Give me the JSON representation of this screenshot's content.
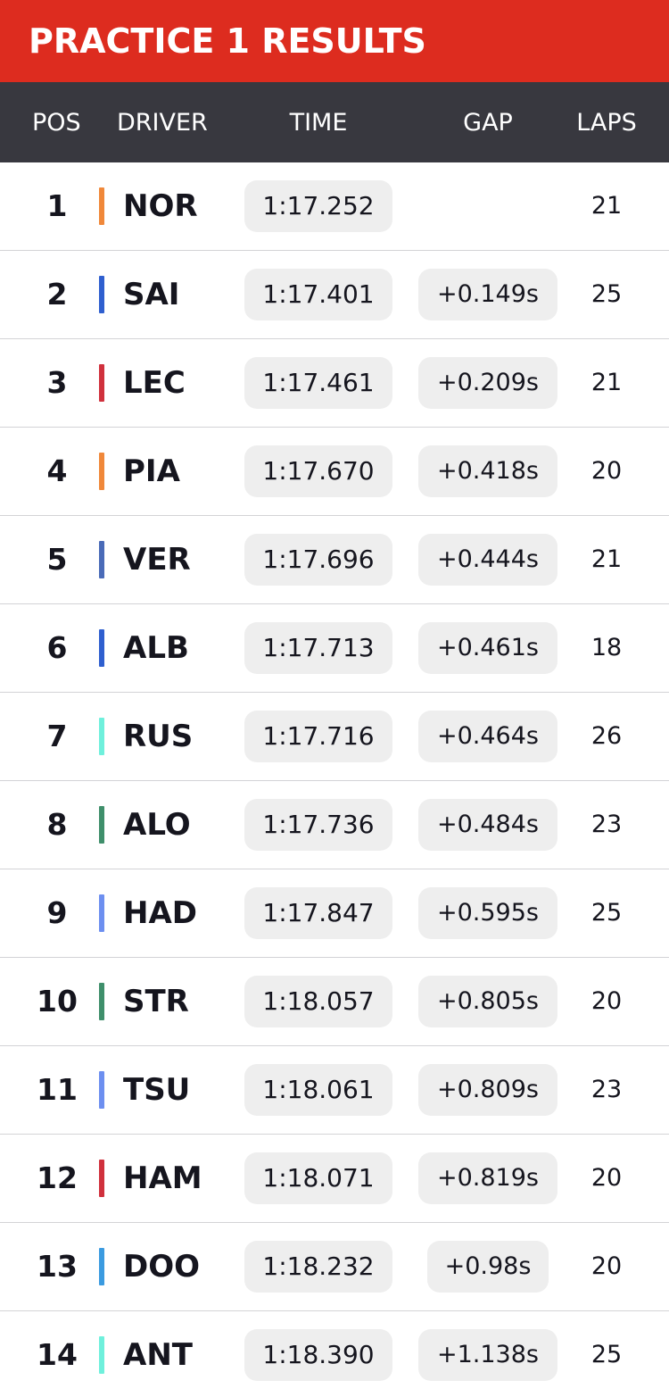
{
  "title": "PRACTICE 1 RESULTS",
  "colors": {
    "title_bar": "#dd2c1f",
    "header_bar": "#38383f",
    "pill_bg": "#eeeeee"
  },
  "header": {
    "pos": "POS",
    "driver": "DRIVER",
    "time": "TIME",
    "gap": "GAP",
    "laps": "LAPS"
  },
  "results": [
    {
      "pos": "1",
      "driver": "NOR",
      "team_color": "#f0883a",
      "time": "1:17.252",
      "gap": "",
      "laps": "21"
    },
    {
      "pos": "2",
      "driver": "SAI",
      "team_color": "#2f5fcf",
      "time": "1:17.401",
      "gap": "+0.149s",
      "laps": "25"
    },
    {
      "pos": "3",
      "driver": "LEC",
      "team_color": "#d0313d",
      "time": "1:17.461",
      "gap": "+0.209s",
      "laps": "21"
    },
    {
      "pos": "4",
      "driver": "PIA",
      "team_color": "#f0883a",
      "time": "1:17.670",
      "gap": "+0.418s",
      "laps": "20"
    },
    {
      "pos": "5",
      "driver": "VER",
      "team_color": "#4a6bb8",
      "time": "1:17.696",
      "gap": "+0.444s",
      "laps": "21"
    },
    {
      "pos": "6",
      "driver": "ALB",
      "team_color": "#2f5fcf",
      "time": "1:17.713",
      "gap": "+0.461s",
      "laps": "18"
    },
    {
      "pos": "7",
      "driver": "RUS",
      "team_color": "#6ff0dc",
      "time": "1:17.716",
      "gap": "+0.464s",
      "laps": "26"
    },
    {
      "pos": "8",
      "driver": "ALO",
      "team_color": "#3f8f6b",
      "time": "1:17.736",
      "gap": "+0.484s",
      "laps": "23"
    },
    {
      "pos": "9",
      "driver": "HAD",
      "team_color": "#6d8ff0",
      "time": "1:17.847",
      "gap": "+0.595s",
      "laps": "25"
    },
    {
      "pos": "10",
      "driver": "STR",
      "team_color": "#3f8f6b",
      "time": "1:18.057",
      "gap": "+0.805s",
      "laps": "20"
    },
    {
      "pos": "11",
      "driver": "TSU",
      "team_color": "#6d8ff0",
      "time": "1:18.061",
      "gap": "+0.809s",
      "laps": "23"
    },
    {
      "pos": "12",
      "driver": "HAM",
      "team_color": "#d0313d",
      "time": "1:18.071",
      "gap": "+0.819s",
      "laps": "20"
    },
    {
      "pos": "13",
      "driver": "DOO",
      "team_color": "#3b9be0",
      "time": "1:18.232",
      "gap": "+0.98s",
      "laps": "20"
    },
    {
      "pos": "14",
      "driver": "ANT",
      "team_color": "#6ff0dc",
      "time": "1:18.390",
      "gap": "+1.138s",
      "laps": "25"
    }
  ]
}
